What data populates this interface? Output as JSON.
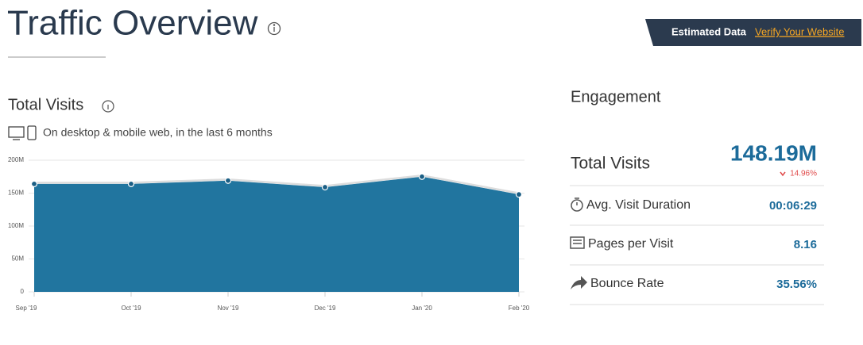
{
  "header": {
    "title": "Traffic Overview",
    "banner_label": "Estimated Data",
    "banner_link": "Verify Your Website"
  },
  "section": {
    "title": "Total Visits",
    "subtitle": "On desktop & mobile web, in the last 6 months"
  },
  "chart_data": {
    "type": "area",
    "categories": [
      "Sep '19",
      "Oct '19",
      "Nov '19",
      "Dec '19",
      "Jan '20",
      "Feb '20"
    ],
    "values": [
      164000000,
      164000000,
      169000000,
      159000000,
      175000000,
      148000000
    ],
    "color": "#21759f",
    "ylim": [
      0,
      200000000
    ],
    "yticks": [
      0,
      {
        "value": 50000000,
        "label": "50M"
      },
      {
        "value": 100000000,
        "label": "100M"
      },
      {
        "value": 150000000,
        "label": "150M"
      },
      {
        "value": 200000000,
        "label": "200M"
      }
    ],
    "grid": true
  },
  "engagement": {
    "title": "Engagement",
    "total_visits": {
      "label": "Total Visits",
      "value": "148.19M",
      "change": "14.96%"
    },
    "rows": [
      {
        "label": "Avg. Visit Duration",
        "value": "00:06:29"
      },
      {
        "label": "Pages per Visit",
        "value": "8.16"
      },
      {
        "label": "Bounce Rate",
        "value": "35.56%"
      }
    ]
  }
}
